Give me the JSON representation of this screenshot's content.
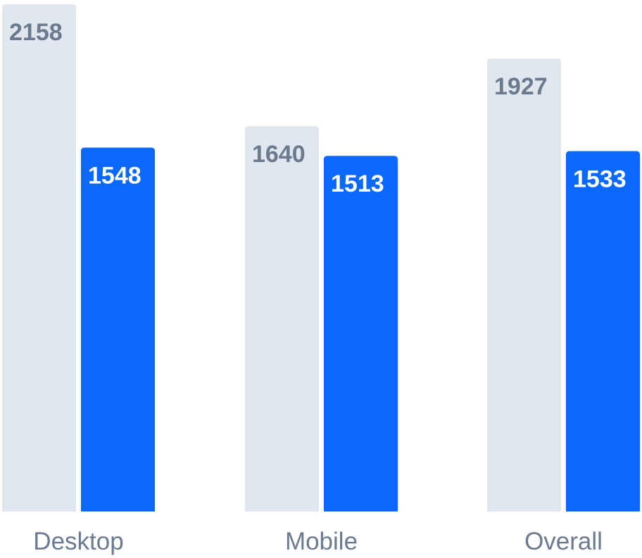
{
  "chart_data": {
    "type": "bar",
    "categories": [
      "Desktop",
      "Mobile",
      "Overall"
    ],
    "series": [
      {
        "values": [
          2158,
          1640,
          1927
        ],
        "color": "#e1e7ef",
        "label_color": "#6b7a8f"
      },
      {
        "values": [
          1548,
          1513,
          1533
        ],
        "color": "#0a68fa",
        "label_color": "#ffffff"
      }
    ],
    "ylim": [
      0,
      2158
    ],
    "grid": false,
    "legend": "none",
    "category_label_color": "#6b7a8f"
  }
}
